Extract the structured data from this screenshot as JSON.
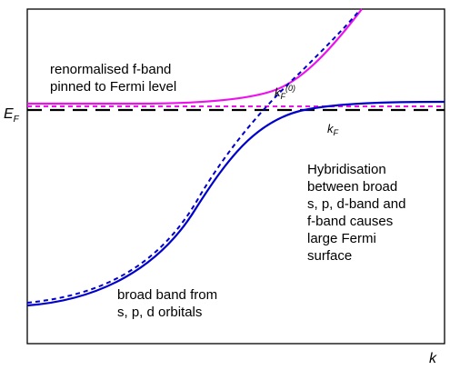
{
  "axes": {
    "x_label": "k",
    "y_tick_label": "E",
    "y_tick_sub": "F"
  },
  "labels": {
    "f_band": [
      "renormalised f-band",
      "pinned to Fermi level"
    ],
    "kf0_main": "k",
    "kf0_sub": "F",
    "kf0_sup": "(0)",
    "kf_main": "k",
    "kf_sub": "F",
    "hybrid": [
      "Hybridisation",
      "between broad",
      "s, p, d-band and",
      "f-band causes",
      "large Fermi",
      "surface"
    ],
    "broad_band": [
      "broad band from",
      "s, p, d orbitals"
    ]
  },
  "colors": {
    "frame": "#000000",
    "fermi_line": "#000000",
    "f_band": "#ee11ee",
    "hybrid_band": "#0000cc"
  }
}
